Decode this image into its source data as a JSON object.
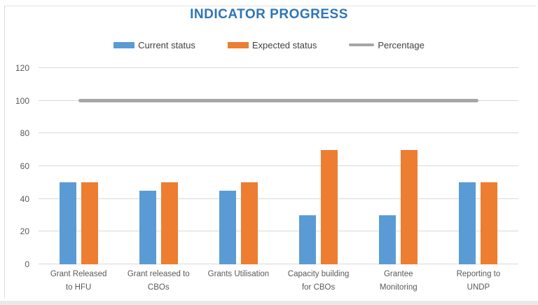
{
  "chart_data": {
    "type": "bar",
    "title": "INDICATOR PROGRESS",
    "categories": [
      "Grant Released\nto HFU",
      "Grant released to\nCBOs",
      "Grants Utilisation",
      "Capacity building\nfor CBOs",
      "Grantee\nMonitoring",
      "Reporting to\nUNDP"
    ],
    "series": [
      {
        "name": "Current status",
        "type": "bar",
        "color": "#5b9bd5",
        "values": [
          50,
          45,
          45,
          30,
          30,
          50
        ]
      },
      {
        "name": "Expected status",
        "type": "bar",
        "color": "#ed7d31",
        "values": [
          50,
          50,
          50,
          70,
          70,
          50
        ]
      },
      {
        "name": "Percentage",
        "type": "line",
        "color": "#a6a6a6",
        "values": [
          100,
          100,
          100,
          100,
          100,
          100
        ]
      }
    ],
    "xlabel": "",
    "ylabel": "",
    "ylim": [
      0,
      120
    ],
    "yticks": [
      0,
      20,
      40,
      60,
      80,
      100,
      120
    ],
    "grid": true,
    "legend_position": "top",
    "colors": {
      "title": "#2e75b6",
      "axis_text": "#595959",
      "gridline": "#d9d9d9"
    }
  }
}
